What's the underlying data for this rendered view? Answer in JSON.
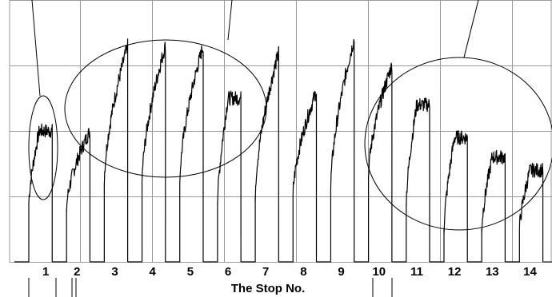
{
  "chart_data": {
    "type": "line",
    "title": "",
    "xlabel": "The Stop No.",
    "ylabel": "",
    "grid": true,
    "legend": "none",
    "x_categories": [
      "1",
      "2",
      "3",
      "4",
      "5",
      "6",
      "7",
      "8",
      "9",
      "10",
      "11",
      "12",
      "13",
      "14"
    ],
    "y_axis": {
      "min": 0,
      "max": 4,
      "gridlines": [
        1,
        2,
        3,
        4
      ]
    },
    "series": [
      {
        "stops": [
          {
            "stop": "1",
            "start": 0.9,
            "end": 2.0,
            "shape": "rise-plateau"
          },
          {
            "stop": "2",
            "start": 0.8,
            "end": 2.0,
            "shape": "rise"
          },
          {
            "stop": "3",
            "start": 1.2,
            "end": 3.3,
            "shape": "rise"
          },
          {
            "stop": "4",
            "start": 1.2,
            "end": 3.3,
            "shape": "rise"
          },
          {
            "stop": "5",
            "start": 1.2,
            "end": 3.3,
            "shape": "rise"
          },
          {
            "stop": "6",
            "start": 0.9,
            "end": 2.5,
            "shape": "rise-plateau"
          },
          {
            "stop": "7",
            "start": 1.0,
            "end": 3.2,
            "shape": "rise"
          },
          {
            "stop": "8",
            "start": 1.0,
            "end": 2.6,
            "shape": "rise"
          },
          {
            "stop": "9",
            "start": 1.1,
            "end": 3.4,
            "shape": "rise"
          },
          {
            "stop": "10",
            "start": 1.3,
            "end": 3.0,
            "shape": "rise"
          },
          {
            "stop": "11",
            "start": 0.9,
            "end": 2.4,
            "shape": "rise-plateau"
          },
          {
            "stop": "12",
            "start": 0.5,
            "end": 1.9,
            "shape": "rise-plateau"
          },
          {
            "stop": "13",
            "start": 0.5,
            "end": 1.6,
            "shape": "rise-plateau"
          },
          {
            "stop": "14",
            "start": 0.5,
            "end": 1.4,
            "shape": "rise-plateau"
          }
        ]
      }
    ],
    "annotations": [
      {
        "type": "ellipse",
        "covers_stops": [
          "1"
        ]
      },
      {
        "type": "ellipse",
        "covers_stops": [
          "3",
          "4",
          "5",
          "6",
          "7"
        ]
      },
      {
        "type": "ellipse",
        "covers_stops": [
          "11",
          "12",
          "13",
          "14"
        ]
      }
    ],
    "colors": {
      "line": "#000000",
      "grid": "#9a9a9a",
      "background": "#ffffff"
    }
  }
}
